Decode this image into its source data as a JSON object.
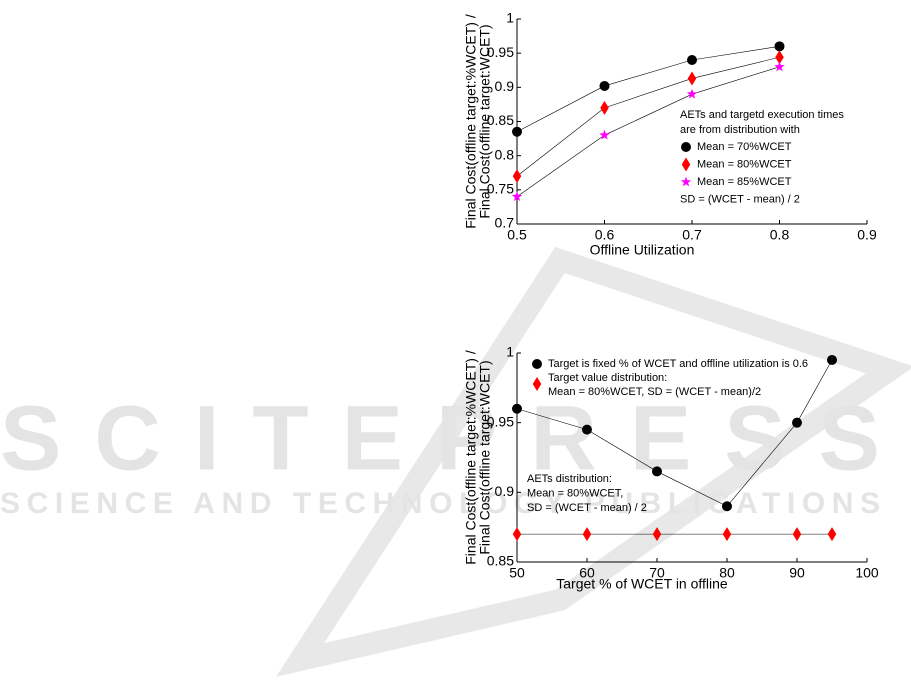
{
  "watermark": {
    "title": "SCITEPRESS",
    "subtitle": "SCIENCE AND TECHNOLOGY PUBLICATIONS"
  },
  "chart_data": [
    {
      "type": "line",
      "y_label": [
        "Final Cost(offline target:%WCET) /",
        "Final Cost(offline target:WCET)"
      ],
      "x_label": "Offline Utilization",
      "x": [
        0.5,
        0.6,
        0.7,
        0.8
      ],
      "xlim": [
        0.5,
        0.9
      ],
      "xticks": [
        0.5,
        0.6,
        0.7,
        0.8,
        0.9
      ],
      "ylim": [
        0.7,
        1
      ],
      "yticks": [
        0.7,
        0.75,
        0.8,
        0.85,
        0.9,
        0.95,
        1
      ],
      "legend_header": [
        "AETs and targetd execution times",
        "are from distribution with"
      ],
      "legend_footer": "SD = (WCET - mean) / 2",
      "series": [
        {
          "name": "Mean = 70%WCET",
          "color": "#000000",
          "marker": "circle",
          "values": [
            0.835,
            0.902,
            0.94,
            0.96
          ]
        },
        {
          "name": "Mean = 80%WCET",
          "color": "#ff0000",
          "marker": "diamond",
          "values": [
            0.77,
            0.87,
            0.913,
            0.944
          ]
        },
        {
          "name": "Mean = 85%WCET",
          "color": "#ff00ff",
          "marker": "star",
          "values": [
            0.74,
            0.83,
            0.89,
            0.93
          ]
        }
      ]
    },
    {
      "type": "line",
      "y_label": [
        "Final Cost(offline target:%WCET) /",
        "Final Cost(offline target:WCET)"
      ],
      "x_label": "Target % of WCET in offline",
      "x": [
        50,
        60,
        70,
        80,
        90,
        95
      ],
      "xlim": [
        50,
        100
      ],
      "xticks": [
        50,
        60,
        70,
        80,
        90,
        100
      ],
      "ylim": [
        0.85,
        1
      ],
      "yticks": [
        0.85,
        0.9,
        0.95,
        1
      ],
      "annotation": [
        "AETs distribution:",
        "Mean = 80%WCET,",
        "SD = (WCET - mean) / 2"
      ],
      "series": [
        {
          "name": [
            "Target is fixed % of WCET and offline utilization is 0.6"
          ],
          "color": "#000000",
          "marker": "circle",
          "values": [
            0.96,
            0.945,
            0.915,
            0.89,
            0.95,
            0.995
          ]
        },
        {
          "name": [
            "Target value distribution:",
            "Mean = 80%WCET, SD = (WCET - mean)/2"
          ],
          "color": "#ff0000",
          "marker": "diamond",
          "values": [
            0.87,
            0.87,
            0.87,
            0.87,
            0.87,
            0.87
          ]
        }
      ]
    }
  ]
}
